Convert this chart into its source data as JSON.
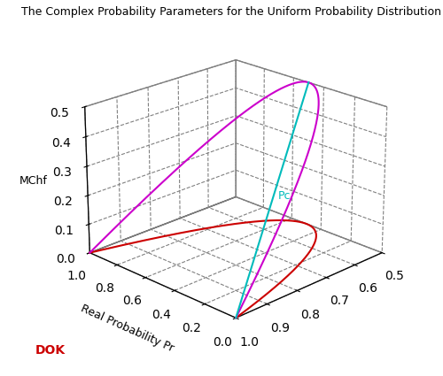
{
  "title": "The Complex Probability Parameters for the Uniform Probability Distribution",
  "xlabel_pr": "Real Probability Pr",
  "ylabel_dok": "DOK",
  "zlabel_mchf": "MChf",
  "dok_lim": [
    0.5,
    1.0
  ],
  "pr_lim": [
    0,
    1
  ],
  "mchf_lim": [
    0,
    0.5
  ],
  "dok_ticks": [
    0.5,
    0.6,
    0.7,
    0.8,
    0.9,
    1.0
  ],
  "pr_ticks": [
    0,
    0.2,
    0.4,
    0.6,
    0.8,
    1.0
  ],
  "mchf_ticks": [
    0,
    0.1,
    0.2,
    0.3,
    0.4,
    0.5
  ],
  "magenta_color": "#cc00cc",
  "red_color": "#cc0000",
  "cyan_color": "#00bbbb",
  "pc_label": "Pc",
  "pc_label_color": "#00bbbb",
  "dok_label_color": "#cc0000",
  "title_fontsize": 9,
  "axis_label_fontsize": 9,
  "n_points": 500,
  "elev": 22,
  "azim": 225
}
